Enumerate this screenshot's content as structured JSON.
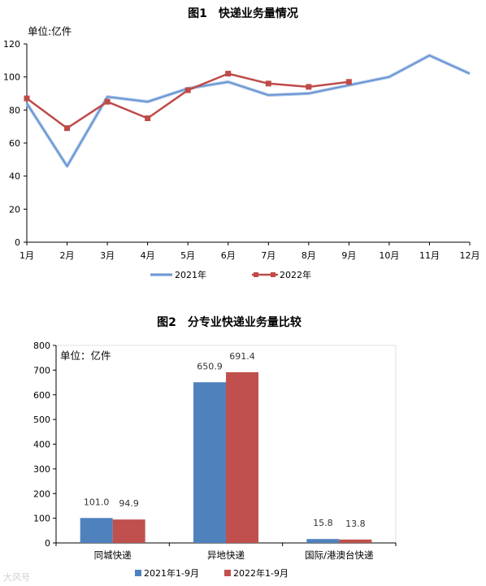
{
  "chart_data": [
    {
      "type": "line",
      "title": "图1　快递业务量情况",
      "unit_label": "单位:亿件",
      "categories": [
        "1月",
        "2月",
        "3月",
        "4月",
        "5月",
        "6月",
        "7月",
        "8月",
        "9月",
        "10月",
        "11月",
        "12月"
      ],
      "yticks": [
        "0",
        "20",
        "40",
        "60",
        "80",
        "100",
        "120"
      ],
      "ylim": [
        0,
        120
      ],
      "series": [
        {
          "name": "2021年",
          "color": "#7aa1d6",
          "values": [
            84,
            46,
            88,
            85,
            93,
            97,
            89,
            90,
            95,
            100,
            113,
            102
          ]
        },
        {
          "name": "2022年",
          "color": "#be4b48",
          "values": [
            87,
            69,
            85,
            75,
            92,
            102,
            96,
            94,
            97,
            null,
            null,
            null
          ]
        }
      ],
      "legend": "bottom"
    },
    {
      "type": "bar",
      "title": "图2　分专业快递业务量比较",
      "unit_label": "单位：亿件",
      "categories": [
        "同城快递",
        "异地快递",
        "国际/港澳台快递"
      ],
      "yticks": [
        "0",
        "100",
        "200",
        "300",
        "400",
        "500",
        "600",
        "700",
        "800"
      ],
      "ylim": [
        0,
        800
      ],
      "series": [
        {
          "name": "2021年1-9月",
          "color": "#4f81bd",
          "values": [
            101.0,
            650.9,
            15.8
          ],
          "labels": [
            "101.0",
            "650.9",
            "15.8"
          ]
        },
        {
          "name": "2022年1-9月",
          "color": "#c0504d",
          "values": [
            94.9,
            691.4,
            13.8
          ],
          "labels": [
            "94.9",
            "691.4",
            "13.8"
          ]
        }
      ],
      "legend": "bottom"
    }
  ],
  "watermark": "大风号"
}
